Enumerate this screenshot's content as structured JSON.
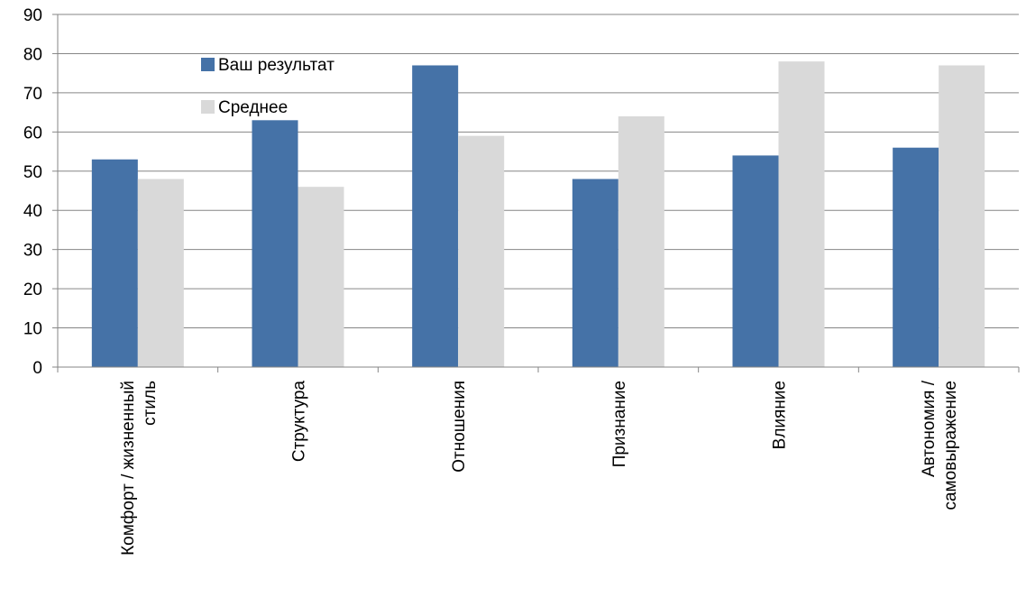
{
  "chart_data": {
    "type": "bar",
    "categories": [
      [
        "Комфорт / жизненный",
        "стиль"
      ],
      [
        "Структура"
      ],
      [
        "Отношения"
      ],
      [
        "Признание"
      ],
      [
        "Влияние"
      ],
      [
        "Автономия /",
        "самовыражение"
      ]
    ],
    "series": [
      {
        "name": "Ваш результат",
        "values": [
          53,
          63,
          77,
          48,
          54,
          56
        ],
        "color": "#4572A7"
      },
      {
        "name": "Среднее",
        "values": [
          48,
          46,
          59,
          64,
          78,
          77
        ],
        "color": "#D9D9D9"
      }
    ],
    "ylim": [
      0,
      90
    ],
    "yticks": [
      0,
      10,
      20,
      30,
      40,
      50,
      60,
      70,
      80,
      90
    ],
    "grid": true,
    "legend_position": "top-left-inside",
    "title": "",
    "xlabel": "",
    "ylabel": ""
  }
}
